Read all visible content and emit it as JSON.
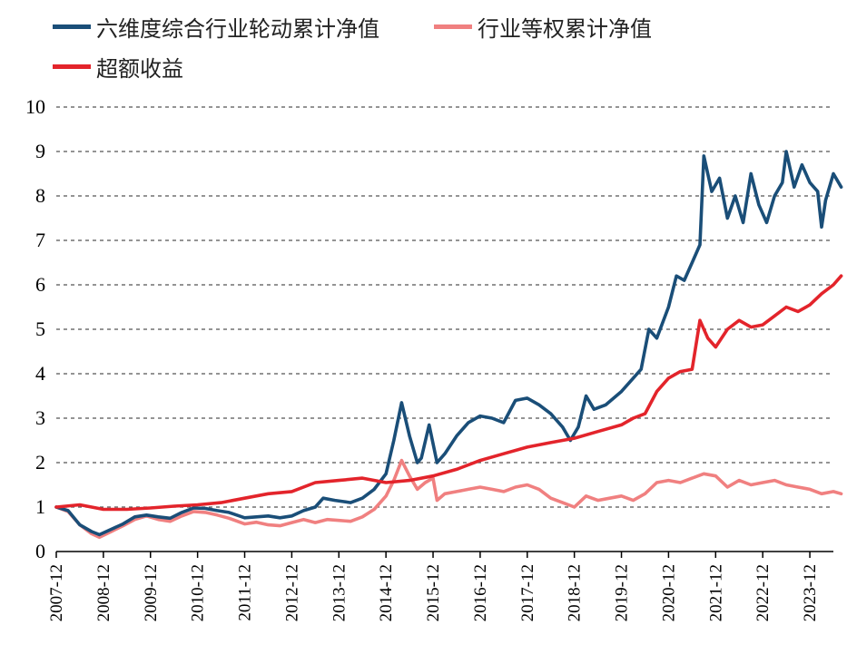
{
  "chart_data": {
    "type": "line",
    "title": "",
    "xlabel": "",
    "ylabel": "",
    "ylim": [
      0,
      10
    ],
    "yticks": [
      0,
      1,
      2,
      3,
      4,
      5,
      6,
      7,
      8,
      9,
      10
    ],
    "xlim": [
      "2007-12",
      "2024-06"
    ],
    "xtick_labels": [
      "2007-12",
      "2008-12",
      "2009-12",
      "2010-12",
      "2011-12",
      "2012-12",
      "2013-12",
      "2014-12",
      "2015-12",
      "2016-12",
      "2017-12",
      "2018-12",
      "2019-12",
      "2020-12",
      "2021-12",
      "2022-12",
      "2023-12"
    ],
    "grid": "horizontal-dashed",
    "legend_position": "top-left",
    "series": [
      {
        "name": "六维度综合行业轮动累计净值",
        "color": "#1a4e78",
        "points": [
          [
            "2007-12",
            1.0
          ],
          [
            "2008-03",
            0.92
          ],
          [
            "2008-06",
            0.6
          ],
          [
            "2008-09",
            0.45
          ],
          [
            "2008-11",
            0.38
          ],
          [
            "2009-02",
            0.5
          ],
          [
            "2009-05",
            0.62
          ],
          [
            "2009-08",
            0.78
          ],
          [
            "2009-11",
            0.82
          ],
          [
            "2010-02",
            0.78
          ],
          [
            "2010-05",
            0.75
          ],
          [
            "2010-08",
            0.88
          ],
          [
            "2010-11",
            0.98
          ],
          [
            "2011-02",
            0.97
          ],
          [
            "2011-05",
            0.92
          ],
          [
            "2011-08",
            0.88
          ],
          [
            "2011-12",
            0.76
          ],
          [
            "2012-03",
            0.78
          ],
          [
            "2012-06",
            0.8
          ],
          [
            "2012-09",
            0.76
          ],
          [
            "2012-12",
            0.8
          ],
          [
            "2013-03",
            0.92
          ],
          [
            "2013-06",
            1.0
          ],
          [
            "2013-08",
            1.2
          ],
          [
            "2013-11",
            1.15
          ],
          [
            "2014-03",
            1.1
          ],
          [
            "2014-06",
            1.2
          ],
          [
            "2014-09",
            1.4
          ],
          [
            "2014-12",
            1.75
          ],
          [
            "2015-02",
            2.5
          ],
          [
            "2015-04",
            3.35
          ],
          [
            "2015-06",
            2.6
          ],
          [
            "2015-08",
            2.0
          ],
          [
            "2015-09",
            2.1
          ],
          [
            "2015-11",
            2.85
          ],
          [
            "2016-01",
            2.0
          ],
          [
            "2016-03",
            2.2
          ],
          [
            "2016-06",
            2.6
          ],
          [
            "2016-09",
            2.9
          ],
          [
            "2016-12",
            3.05
          ],
          [
            "2017-03",
            3.0
          ],
          [
            "2017-06",
            2.9
          ],
          [
            "2017-09",
            3.4
          ],
          [
            "2017-12",
            3.45
          ],
          [
            "2018-03",
            3.3
          ],
          [
            "2018-06",
            3.1
          ],
          [
            "2018-09",
            2.8
          ],
          [
            "2018-11",
            2.5
          ],
          [
            "2019-01",
            2.8
          ],
          [
            "2019-03",
            3.5
          ],
          [
            "2019-05",
            3.2
          ],
          [
            "2019-08",
            3.3
          ],
          [
            "2019-12",
            3.6
          ],
          [
            "2020-03",
            3.9
          ],
          [
            "2020-05",
            4.1
          ],
          [
            "2020-07",
            5.0
          ],
          [
            "2020-09",
            4.8
          ],
          [
            "2020-12",
            5.5
          ],
          [
            "2021-02",
            6.2
          ],
          [
            "2021-04",
            6.1
          ],
          [
            "2021-06",
            6.5
          ],
          [
            "2021-08",
            6.9
          ],
          [
            "2021-09",
            8.9
          ],
          [
            "2021-11",
            8.1
          ],
          [
            "2022-01",
            8.4
          ],
          [
            "2022-03",
            7.5
          ],
          [
            "2022-05",
            8.0
          ],
          [
            "2022-07",
            7.4
          ],
          [
            "2022-09",
            8.5
          ],
          [
            "2022-11",
            7.8
          ],
          [
            "2023-01",
            7.4
          ],
          [
            "2023-03",
            8.0
          ],
          [
            "2023-05",
            8.3
          ],
          [
            "2023-06",
            9.0
          ],
          [
            "2023-08",
            8.2
          ],
          [
            "2023-10",
            8.7
          ],
          [
            "2023-12",
            8.3
          ],
          [
            "2024-02",
            8.1
          ],
          [
            "2024-03",
            7.3
          ],
          [
            "2024-04",
            7.9
          ],
          [
            "2024-06",
            8.5
          ],
          [
            "2024-08",
            8.2
          ]
        ]
      },
      {
        "name": "行业等权累计净值",
        "color": "#f08080",
        "points": [
          [
            "2007-12",
            1.0
          ],
          [
            "2008-03",
            0.9
          ],
          [
            "2008-06",
            0.6
          ],
          [
            "2008-09",
            0.4
          ],
          [
            "2008-11",
            0.32
          ],
          [
            "2009-02",
            0.45
          ],
          [
            "2009-05",
            0.58
          ],
          [
            "2009-08",
            0.72
          ],
          [
            "2009-11",
            0.8
          ],
          [
            "2010-02",
            0.72
          ],
          [
            "2010-05",
            0.68
          ],
          [
            "2010-08",
            0.8
          ],
          [
            "2010-11",
            0.9
          ],
          [
            "2011-02",
            0.88
          ],
          [
            "2011-05",
            0.82
          ],
          [
            "2011-08",
            0.75
          ],
          [
            "2011-12",
            0.62
          ],
          [
            "2012-03",
            0.66
          ],
          [
            "2012-06",
            0.6
          ],
          [
            "2012-09",
            0.58
          ],
          [
            "2012-12",
            0.65
          ],
          [
            "2013-03",
            0.72
          ],
          [
            "2013-06",
            0.65
          ],
          [
            "2013-09",
            0.72
          ],
          [
            "2013-12",
            0.7
          ],
          [
            "2014-03",
            0.68
          ],
          [
            "2014-06",
            0.78
          ],
          [
            "2014-09",
            0.95
          ],
          [
            "2014-12",
            1.25
          ],
          [
            "2015-02",
            1.6
          ],
          [
            "2015-04",
            2.05
          ],
          [
            "2015-06",
            1.7
          ],
          [
            "2015-08",
            1.4
          ],
          [
            "2015-10",
            1.55
          ],
          [
            "2015-12",
            1.65
          ],
          [
            "2016-01",
            1.15
          ],
          [
            "2016-03",
            1.3
          ],
          [
            "2016-06",
            1.35
          ],
          [
            "2016-09",
            1.4
          ],
          [
            "2016-12",
            1.45
          ],
          [
            "2017-03",
            1.4
          ],
          [
            "2017-06",
            1.35
          ],
          [
            "2017-09",
            1.45
          ],
          [
            "2017-12",
            1.5
          ],
          [
            "2018-03",
            1.4
          ],
          [
            "2018-06",
            1.2
          ],
          [
            "2018-09",
            1.1
          ],
          [
            "2018-12",
            1.0
          ],
          [
            "2019-03",
            1.25
          ],
          [
            "2019-06",
            1.15
          ],
          [
            "2019-09",
            1.2
          ],
          [
            "2019-12",
            1.25
          ],
          [
            "2020-03",
            1.15
          ],
          [
            "2020-06",
            1.3
          ],
          [
            "2020-09",
            1.55
          ],
          [
            "2020-12",
            1.6
          ],
          [
            "2021-03",
            1.55
          ],
          [
            "2021-06",
            1.65
          ],
          [
            "2021-09",
            1.75
          ],
          [
            "2021-12",
            1.7
          ],
          [
            "2022-03",
            1.45
          ],
          [
            "2022-06",
            1.6
          ],
          [
            "2022-09",
            1.5
          ],
          [
            "2022-12",
            1.55
          ],
          [
            "2023-03",
            1.6
          ],
          [
            "2023-06",
            1.5
          ],
          [
            "2023-09",
            1.45
          ],
          [
            "2023-12",
            1.4
          ],
          [
            "2024-03",
            1.3
          ],
          [
            "2024-06",
            1.35
          ],
          [
            "2024-08",
            1.3
          ]
        ]
      },
      {
        "name": "超额收益",
        "color": "#e3242b",
        "points": [
          [
            "2007-12",
            1.0
          ],
          [
            "2008-06",
            1.05
          ],
          [
            "2008-12",
            0.95
          ],
          [
            "2009-06",
            0.95
          ],
          [
            "2009-12",
            0.98
          ],
          [
            "2010-06",
            1.02
          ],
          [
            "2010-12",
            1.05
          ],
          [
            "2011-06",
            1.1
          ],
          [
            "2011-12",
            1.2
          ],
          [
            "2012-06",
            1.3
          ],
          [
            "2012-12",
            1.35
          ],
          [
            "2013-06",
            1.55
          ],
          [
            "2013-12",
            1.6
          ],
          [
            "2014-06",
            1.65
          ],
          [
            "2014-12",
            1.55
          ],
          [
            "2015-06",
            1.6
          ],
          [
            "2015-12",
            1.7
          ],
          [
            "2016-06",
            1.85
          ],
          [
            "2016-12",
            2.05
          ],
          [
            "2017-06",
            2.2
          ],
          [
            "2017-12",
            2.35
          ],
          [
            "2018-06",
            2.45
          ],
          [
            "2018-12",
            2.55
          ],
          [
            "2019-06",
            2.7
          ],
          [
            "2019-12",
            2.85
          ],
          [
            "2020-03",
            3.0
          ],
          [
            "2020-06",
            3.1
          ],
          [
            "2020-09",
            3.6
          ],
          [
            "2020-12",
            3.9
          ],
          [
            "2021-03",
            4.05
          ],
          [
            "2021-06",
            4.1
          ],
          [
            "2021-08",
            5.2
          ],
          [
            "2021-10",
            4.8
          ],
          [
            "2021-12",
            4.6
          ],
          [
            "2022-03",
            5.0
          ],
          [
            "2022-06",
            5.2
          ],
          [
            "2022-09",
            5.05
          ],
          [
            "2022-12",
            5.1
          ],
          [
            "2023-03",
            5.3
          ],
          [
            "2023-06",
            5.5
          ],
          [
            "2023-09",
            5.4
          ],
          [
            "2023-12",
            5.55
          ],
          [
            "2024-03",
            5.8
          ],
          [
            "2024-06",
            6.0
          ],
          [
            "2024-08",
            6.2
          ]
        ]
      }
    ]
  }
}
